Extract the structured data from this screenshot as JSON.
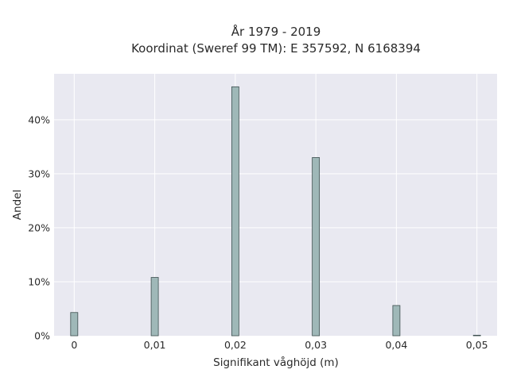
{
  "chart_data": {
    "type": "bar",
    "title": "År 1979 - 2019",
    "subtitle": "Koordinat (Sweref 99 TM): E 357592, N 6168394",
    "xlabel": "Signifikant våghöjd (m)",
    "ylabel": "Andel",
    "x": [
      0,
      0.01,
      0.02,
      0.03,
      0.04,
      0.05
    ],
    "values": [
      4.3,
      10.8,
      46.1,
      33.0,
      5.6,
      0.1
    ],
    "x_ticks": [
      0,
      0.01,
      0.02,
      0.03,
      0.04,
      0.05
    ],
    "x_tick_labels": [
      "0",
      "0,01",
      "0,02",
      "0,03",
      "0,04",
      "0,05"
    ],
    "y_ticks": [
      0,
      10,
      20,
      30,
      40
    ],
    "y_tick_labels": [
      "0%",
      "10%",
      "20%",
      "30%",
      "40%"
    ],
    "xlim": [
      -0.0025,
      0.0525
    ],
    "ylim": [
      0,
      48.5
    ],
    "grid": true,
    "colors": {
      "plot_bg": "#e9e9f1",
      "grid": "#ffffff",
      "bar_fill": "#9fb8b8",
      "bar_edge": "#3d4f4f"
    }
  }
}
